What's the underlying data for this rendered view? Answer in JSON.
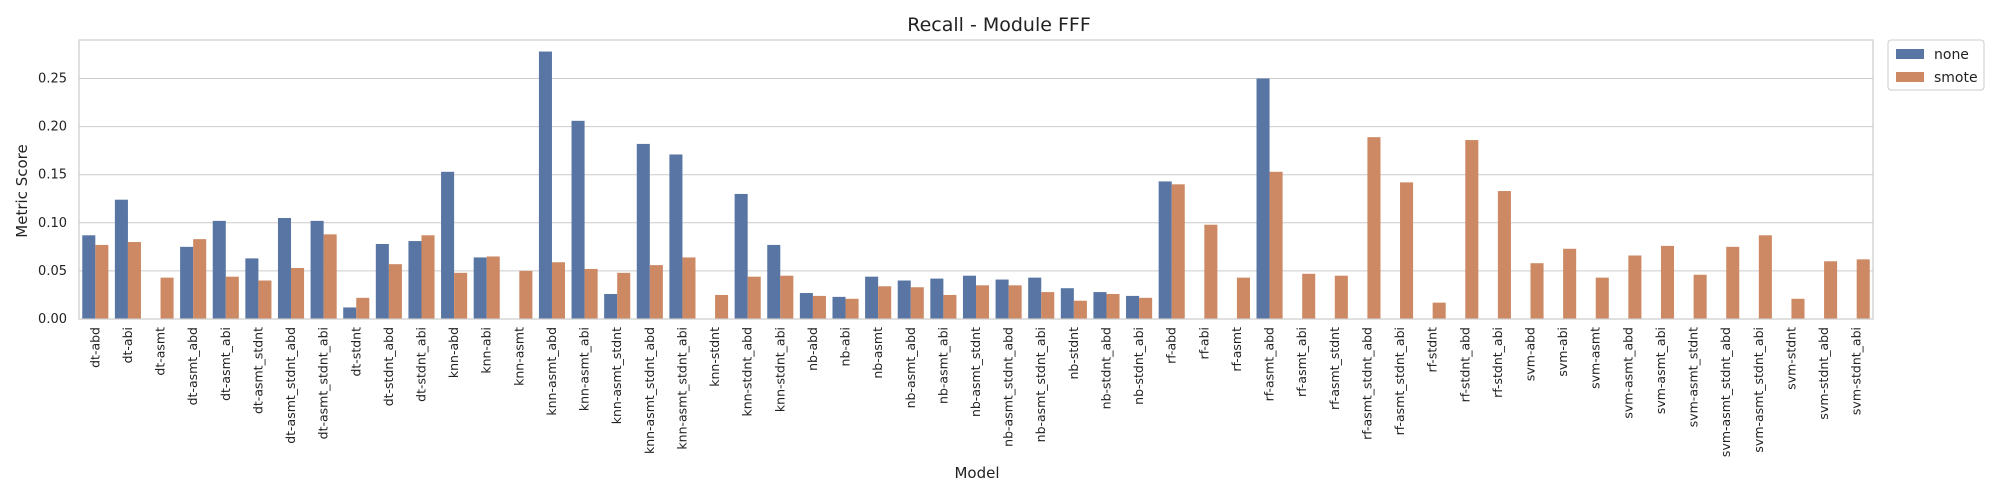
{
  "chart_data": {
    "type": "bar",
    "title": "Recall - Module FFF",
    "xlabel": "Model",
    "ylabel": "Metric Score",
    "ylim": [
      0,
      0.29
    ],
    "yticks": [
      0.0,
      0.05,
      0.1,
      0.15,
      0.2,
      0.25
    ],
    "ytick_labels": [
      "0.00",
      "0.05",
      "0.10",
      "0.15",
      "0.20",
      "0.25"
    ],
    "grid": "horizontal",
    "legend_position": "outside-top-right",
    "categories": [
      "dt-abd",
      "dt-abi",
      "dt-asmt",
      "dt-asmt_abd",
      "dt-asmt_abi",
      "dt-asmt_stdnt",
      "dt-asmt_stdnt_abd",
      "dt-asmt_stdnt_abi",
      "dt-stdnt",
      "dt-stdnt_abd",
      "dt-stdnt_abi",
      "knn-abd",
      "knn-abi",
      "knn-asmt",
      "knn-asmt_abd",
      "knn-asmt_abi",
      "knn-asmt_stdnt",
      "knn-asmt_stdnt_abd",
      "knn-asmt_stdnt_abi",
      "knn-stdnt",
      "knn-stdnt_abd",
      "knn-stdnt_abi",
      "nb-abd",
      "nb-abi",
      "nb-asmt",
      "nb-asmt_abd",
      "nb-asmt_abi",
      "nb-asmt_stdnt",
      "nb-asmt_stdnt_abd",
      "nb-asmt_stdnt_abi",
      "nb-stdnt",
      "nb-stdnt_abd",
      "nb-stdnt_abi",
      "rf-abd",
      "rf-abi",
      "rf-asmt",
      "rf-asmt_abd",
      "rf-asmt_abi",
      "rf-asmt_stdnt",
      "rf-asmt_stdnt_abd",
      "rf-asmt_stdnt_abi",
      "rf-stdnt",
      "rf-stdnt_abd",
      "rf-stdnt_abi",
      "svm-abd",
      "svm-abi",
      "svm-asmt",
      "svm-asmt_abd",
      "svm-asmt_abi",
      "svm-asmt_stdnt",
      "svm-asmt_stdnt_abd",
      "svm-asmt_stdnt_abi",
      "svm-stdnt",
      "svm-stdnt_abd",
      "svm-stdnt_abi"
    ],
    "series": [
      {
        "name": "none",
        "color": "#5875a4",
        "values": [
          0.087,
          0.124,
          0.0,
          0.075,
          0.102,
          0.063,
          0.105,
          0.102,
          0.012,
          0.078,
          0.081,
          0.153,
          0.064,
          0.0,
          0.278,
          0.206,
          0.026,
          0.182,
          0.171,
          0.0,
          0.13,
          0.077,
          0.027,
          0.023,
          0.044,
          0.04,
          0.042,
          0.045,
          0.041,
          0.043,
          0.032,
          0.028,
          0.024,
          0.143,
          0.0,
          0.0,
          0.25,
          0.0,
          0.0,
          0.0,
          0.0,
          0.0,
          0.0,
          0.0,
          0.0,
          0.0,
          0.0,
          0.0,
          0.0,
          0.0,
          0.0,
          0.0,
          0.0,
          0.0,
          0.0
        ]
      },
      {
        "name": "smote",
        "color": "#cc8963",
        "values": [
          0.077,
          0.08,
          0.043,
          0.083,
          0.044,
          0.04,
          0.053,
          0.088,
          0.022,
          0.057,
          0.087,
          0.048,
          0.065,
          0.05,
          0.059,
          0.052,
          0.048,
          0.056,
          0.064,
          0.025,
          0.044,
          0.045,
          0.024,
          0.021,
          0.034,
          0.033,
          0.025,
          0.035,
          0.035,
          0.028,
          0.019,
          0.026,
          0.022,
          0.14,
          0.098,
          0.043,
          0.153,
          0.047,
          0.045,
          0.189,
          0.142,
          0.017,
          0.186,
          0.133,
          0.058,
          0.073,
          0.043,
          0.066,
          0.076,
          0.046,
          0.075,
          0.087,
          0.021,
          0.06,
          0.062
        ]
      }
    ]
  }
}
